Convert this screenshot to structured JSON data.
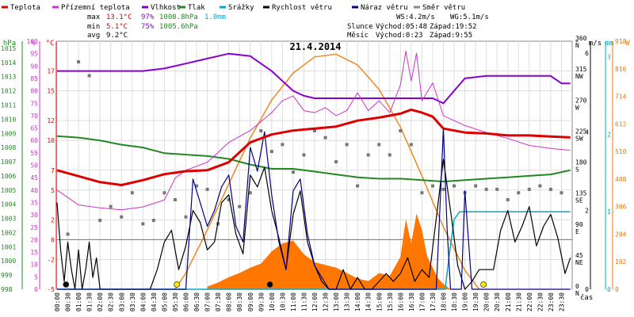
{
  "chart_data": {
    "type": "line",
    "title": "21.4.2014",
    "xlabel": "čas",
    "legend": [
      {
        "key": "teplota",
        "label": "Teplota",
        "color": "#dd0000"
      },
      {
        "key": "prizemni",
        "label": "Přízemní teplota",
        "color": "#cc33cc"
      },
      {
        "key": "vlhkost",
        "label": "Vlhkost",
        "color": "#8800cc"
      },
      {
        "key": "tlak",
        "label": "Tlak",
        "color": "#228822"
      },
      {
        "key": "srazky",
        "label": "Srážky",
        "color": "#00aacc"
      },
      {
        "key": "rychlost",
        "label": "Rychlost větru",
        "color": "#000000"
      },
      {
        "key": "naraz",
        "label": "Náraz větru",
        "color": "#000088"
      },
      {
        "key": "smer",
        "label": "Směr větru",
        "color": "#888888"
      }
    ],
    "stats": {
      "max_label": "max",
      "min_label": "min",
      "avg_label": "avg",
      "max_temp": "13.1°C",
      "max_hum": "97%",
      "max_press": "1008.8hPa",
      "max_rain": "1.0mm",
      "min_temp": "5.1°C",
      "min_hum": "75%",
      "min_press": "1005.6hPa",
      "avg_temp": "9.2°C",
      "ws": "WS:4.2m/s",
      "wg": "WG:5.1m/s",
      "sun_label": "Slunce",
      "moon_label": "Měsíc",
      "sun_rise": "Východ:05:48",
      "sun_set": "Západ:19:52",
      "moon_rise": "Východ:0:23",
      "moon_set": "Západ:9:55"
    },
    "axis_units": {
      "press": "hPa",
      "hum": "%",
      "temp": "°C",
      "dir": "°",
      "wind": "m/s",
      "rain": "mm",
      "solar": "W"
    },
    "axes": {
      "press_ticks": [
        "998",
        "999",
        "1000",
        "1001",
        "1002",
        "1003",
        "1004",
        "1005",
        "1006",
        "1007",
        "1008",
        "1009",
        "1010",
        "1011",
        "1012",
        "1013",
        "1014",
        "1015"
      ],
      "hum_ticks": [
        "0",
        "5",
        "10",
        "15",
        "20",
        "25",
        "30",
        "35",
        "40",
        "45",
        "50",
        "55",
        "60",
        "65",
        "70",
        "75",
        "80",
        "85",
        "90",
        "95",
        "100"
      ],
      "temp_ticks": [
        "-5",
        "-2",
        "0",
        "2",
        "5",
        "7",
        "10",
        "12",
        "15",
        "17"
      ],
      "dir_ticks": [
        [
          "0",
          "N"
        ],
        [
          "45",
          "NE"
        ],
        [
          "90",
          "E"
        ],
        [
          "135",
          "SE"
        ],
        [
          "180",
          "S"
        ],
        [
          "225",
          "SW"
        ],
        [
          "270",
          "W"
        ],
        [
          "315",
          "NW"
        ],
        [
          "360",
          "N"
        ]
      ],
      "wind_ticks": [
        "0",
        "2",
        "4",
        "6"
      ],
      "rain_ticks": [
        "0",
        "1",
        "2",
        "3"
      ],
      "solar_ticks": [
        "0",
        "102",
        "204",
        "306",
        "408",
        "510",
        "612",
        "714",
        "816",
        "918"
      ],
      "ylim_press": [
        998,
        1015.5
      ],
      "ylim_temp": [
        -5,
        20
      ],
      "ylim_hum": [
        0,
        100
      ],
      "ylim_dir": [
        0,
        360
      ],
      "ylim_wind": [
        0,
        6.3
      ],
      "ylim_rain": [
        0,
        3.2
      ],
      "ylim_solar": [
        0,
        918
      ],
      "x_range": [
        0,
        1440
      ],
      "time_labels": [
        "00:00",
        "00:30",
        "01:00",
        "01:30",
        "02:00",
        "02:30",
        "03:00",
        "03:30",
        "04:00",
        "04:30",
        "05:00",
        "05:30",
        "06:00",
        "06:30",
        "07:00",
        "07:30",
        "08:00",
        "08:30",
        "09:00",
        "09:30",
        "10:00",
        "10:30",
        "11:00",
        "11:30",
        "12:00",
        "12:30",
        "13:00",
        "13:30",
        "14:00",
        "14:30",
        "15:00",
        "15:30",
        "16:00",
        "16:30",
        "17:00",
        "17:30",
        "18:00",
        "18:30",
        "19:00",
        "19:30",
        "20:00",
        "20:30",
        "21:00",
        "21:30",
        "22:00",
        "22:30",
        "23:00",
        "23:30"
      ]
    },
    "series": [
      {
        "key": "teplota",
        "x": [
          0,
          60,
          120,
          180,
          240,
          300,
          360,
          420,
          480,
          540,
          600,
          660,
          720,
          780,
          840,
          900,
          960,
          990,
          1020,
          1050,
          1080,
          1140,
          1200,
          1260,
          1320,
          1380,
          1435
        ],
        "y": [
          7.0,
          6.4,
          5.8,
          5.5,
          6.0,
          6.6,
          6.9,
          7.0,
          7.8,
          9.8,
          10.6,
          11.0,
          11.2,
          11.4,
          12.0,
          12.3,
          12.7,
          13.1,
          12.8,
          12.4,
          11.2,
          10.8,
          10.7,
          10.5,
          10.5,
          10.4,
          10.3
        ]
      },
      {
        "key": "prizemni",
        "x": [
          0,
          60,
          120,
          180,
          240,
          300,
          330,
          360,
          420,
          480,
          540,
          600,
          630,
          660,
          690,
          720,
          750,
          780,
          810,
          840,
          870,
          900,
          930,
          960,
          975,
          990,
          1005,
          1020,
          1050,
          1080,
          1140,
          1200,
          1260,
          1320,
          1380,
          1435
        ],
        "y": [
          5.0,
          3.5,
          3.2,
          3.0,
          3.3,
          4.0,
          6.2,
          7.0,
          7.8,
          9.8,
          11.0,
          12.8,
          14.0,
          14.5,
          13.0,
          12.8,
          13.3,
          12.5,
          13.0,
          14.8,
          13.0,
          14.0,
          12.8,
          15.6,
          19.0,
          16.0,
          18.8,
          14.0,
          15.8,
          12.5,
          11.5,
          10.8,
          10.2,
          9.5,
          9.2,
          9.0
        ]
      },
      {
        "key": "vlhkost",
        "x": [
          0,
          60,
          120,
          180,
          240,
          300,
          360,
          420,
          480,
          540,
          600,
          660,
          690,
          720,
          780,
          840,
          900,
          960,
          1020,
          1050,
          1080,
          1110,
          1140,
          1200,
          1260,
          1320,
          1380,
          1410,
          1435
        ],
        "y": [
          88,
          88,
          88,
          88,
          88,
          89,
          91,
          93,
          95,
          94,
          88,
          80,
          78,
          77,
          77,
          77,
          77,
          77,
          77,
          77,
          75,
          80,
          85,
          86,
          86,
          86,
          86,
          83,
          83
        ]
      },
      {
        "key": "tlak",
        "x": [
          0,
          60,
          120,
          180,
          240,
          300,
          360,
          420,
          480,
          540,
          600,
          660,
          720,
          780,
          840,
          900,
          960,
          1020,
          1080,
          1140,
          1200,
          1260,
          1320,
          1380,
          1435
        ],
        "y": [
          1008.8,
          1008.7,
          1008.5,
          1008.2,
          1008.0,
          1007.6,
          1007.5,
          1007.4,
          1007.2,
          1006.8,
          1006.5,
          1006.5,
          1006.3,
          1006.1,
          1005.9,
          1005.8,
          1005.8,
          1005.7,
          1005.6,
          1005.7,
          1005.8,
          1005.9,
          1006.0,
          1006.1,
          1006.4
        ]
      },
      {
        "key": "srazky",
        "x": [
          0,
          1085,
          1095,
          1110,
          1125,
          1140,
          1260,
          1435
        ],
        "y": [
          0,
          0,
          0.4,
          0.9,
          1.0,
          1.0,
          1.0,
          1.0
        ]
      },
      {
        "key": "rychlost",
        "x": [
          0,
          10,
          20,
          30,
          40,
          50,
          60,
          70,
          80,
          90,
          100,
          110,
          120,
          150,
          180,
          210,
          240,
          260,
          280,
          300,
          320,
          340,
          360,
          380,
          400,
          420,
          440,
          460,
          480,
          500,
          520,
          540,
          560,
          580,
          600,
          620,
          640,
          660,
          680,
          700,
          720,
          740,
          760,
          780,
          800,
          820,
          840,
          860,
          880,
          900,
          920,
          940,
          960,
          980,
          1000,
          1020,
          1040,
          1060,
          1080,
          1100,
          1120,
          1140,
          1160,
          1180,
          1200,
          1220,
          1240,
          1260,
          1280,
          1300,
          1320,
          1340,
          1360,
          1380,
          1400,
          1420,
          1435
        ],
        "y": [
          2.2,
          1.0,
          0.2,
          1.2,
          0.5,
          0,
          1.0,
          0,
          0.5,
          1.2,
          0.3,
          0.8,
          0,
          0,
          0,
          0,
          0,
          0,
          0.5,
          1.2,
          1.5,
          0.5,
          1.1,
          2.0,
          1.7,
          1.0,
          1.2,
          2.2,
          2.4,
          1.4,
          0.9,
          2.9,
          2.6,
          3.1,
          2.0,
          1.3,
          0.5,
          1.9,
          2.5,
          1.2,
          0.6,
          0.2,
          0,
          0,
          0.5,
          0,
          0.3,
          0,
          0,
          0.2,
          0.4,
          0.2,
          0.4,
          0.8,
          0.2,
          0.5,
          0.3,
          1.8,
          3.3,
          2.0,
          0.6,
          0,
          0.2,
          0.5,
          0.5,
          0.5,
          1.5,
          2.0,
          1.2,
          1.6,
          2.1,
          1.1,
          1.6,
          1.9,
          1.3,
          0.4,
          0.8
        ]
      },
      {
        "key": "naraz",
        "x": [
          0,
          60,
          120,
          180,
          240,
          300,
          360,
          380,
          400,
          420,
          440,
          460,
          480,
          500,
          520,
          540,
          560,
          580,
          600,
          620,
          640,
          660,
          680,
          700,
          720,
          760,
          800,
          840,
          880,
          920,
          960,
          1000,
          1040,
          1060,
          1070,
          1080,
          1090,
          1100,
          1110,
          1120,
          1130,
          1140,
          1160,
          1180,
          1200,
          1260,
          1320,
          1380,
          1435
        ],
        "y": [
          0,
          0,
          0,
          0,
          0,
          0,
          0,
          2.8,
          2.2,
          1.6,
          2.0,
          2.6,
          2.9,
          1.6,
          1.2,
          3.6,
          3.0,
          4.0,
          2.4,
          1.2,
          0.5,
          2.5,
          2.8,
          1.4,
          0.6,
          0,
          0,
          0,
          0,
          0,
          0,
          0,
          0,
          0,
          2.0,
          4.1,
          1.6,
          0,
          0,
          0,
          0,
          2.5,
          0,
          0,
          0,
          0,
          0,
          0,
          0
        ]
      },
      {
        "key": "solar",
        "x": [
          330,
          360,
          420,
          480,
          540,
          600,
          660,
          720,
          780,
          840,
          900,
          960,
          1020,
          1080,
          1140,
          1180
        ],
        "y": [
          0,
          60,
          220,
          390,
          560,
          700,
          800,
          860,
          870,
          830,
          740,
          600,
          420,
          230,
          70,
          0
        ]
      },
      {
        "key": "solar_measured",
        "x": [
          420,
          450,
          480,
          510,
          540,
          570,
          600,
          630,
          660,
          690,
          720,
          750,
          780,
          810,
          840,
          870,
          900,
          930,
          960,
          975,
          990,
          1005,
          1020,
          1035,
          1050,
          1065,
          1080,
          1100
        ],
        "y": [
          10,
          25,
          45,
          60,
          80,
          95,
          140,
          170,
          180,
          130,
          100,
          90,
          80,
          60,
          40,
          30,
          60,
          50,
          120,
          260,
          170,
          280,
          220,
          120,
          80,
          40,
          20,
          0
        ]
      },
      {
        "key": "smer",
        "x": [
          30,
          60,
          90,
          120,
          150,
          180,
          210,
          240,
          270,
          300,
          330,
          360,
          390,
          420,
          450,
          480,
          510,
          540,
          570,
          600,
          630,
          660,
          690,
          720,
          750,
          780,
          810,
          840,
          870,
          900,
          930,
          960,
          990,
          1020,
          1050,
          1080,
          1110,
          1140,
          1170,
          1200,
          1230,
          1260,
          1290,
          1320,
          1350,
          1380,
          1410
        ],
        "y": [
          80,
          330,
          310,
          100,
          120,
          105,
          140,
          95,
          100,
          140,
          130,
          105,
          150,
          145,
          95,
          130,
          120,
          140,
          230,
          200,
          210,
          170,
          195,
          230,
          220,
          185,
          210,
          150,
          195,
          210,
          195,
          230,
          210,
          140,
          150,
          145,
          150,
          140,
          150,
          145,
          145,
          130,
          140,
          145,
          150,
          145,
          140
        ]
      }
    ],
    "markers": [
      {
        "x": 25,
        "color": "#000000"
      },
      {
        "x": 335,
        "color": "#ffee00"
      },
      {
        "x": 595,
        "color": "#000000"
      },
      {
        "x": 1192,
        "color": "#ffee00"
      }
    ]
  }
}
